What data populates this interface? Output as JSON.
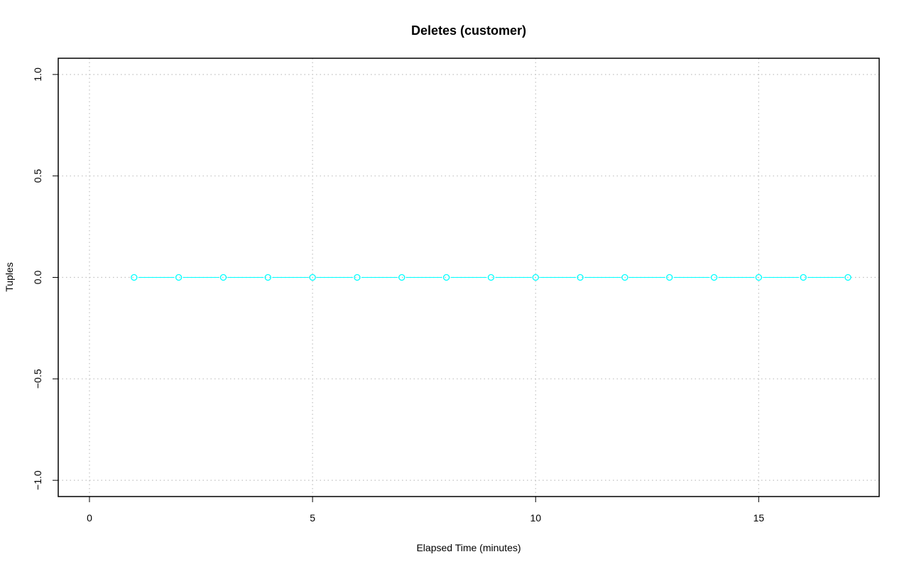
{
  "chart_data": {
    "type": "line",
    "title": "Deletes (customer)",
    "xlabel": "Elapsed Time (minutes)",
    "ylabel": "Tuples",
    "xlim": [
      -0.7,
      17.7
    ],
    "ylim": [
      -1.08,
      1.08
    ],
    "x_ticks": [
      0,
      5,
      10,
      15
    ],
    "x_tick_labels": [
      "0",
      "5",
      "10",
      "15"
    ],
    "y_ticks": [
      -1.0,
      -0.5,
      0.0,
      0.5,
      1.0
    ],
    "y_tick_labels": [
      "−1.0",
      "−0.5",
      "0.0",
      "0.5",
      "1.0"
    ],
    "grid": true,
    "series": [
      {
        "color": "#00ffff",
        "marker": "circle",
        "x": [
          1,
          2,
          3,
          4,
          5,
          6,
          7,
          8,
          9,
          10,
          11,
          12,
          13,
          14,
          15,
          16,
          17
        ],
        "y": [
          0,
          0,
          0,
          0,
          0,
          0,
          0,
          0,
          0,
          0,
          0,
          0,
          0,
          0,
          0,
          0,
          0
        ]
      }
    ]
  }
}
